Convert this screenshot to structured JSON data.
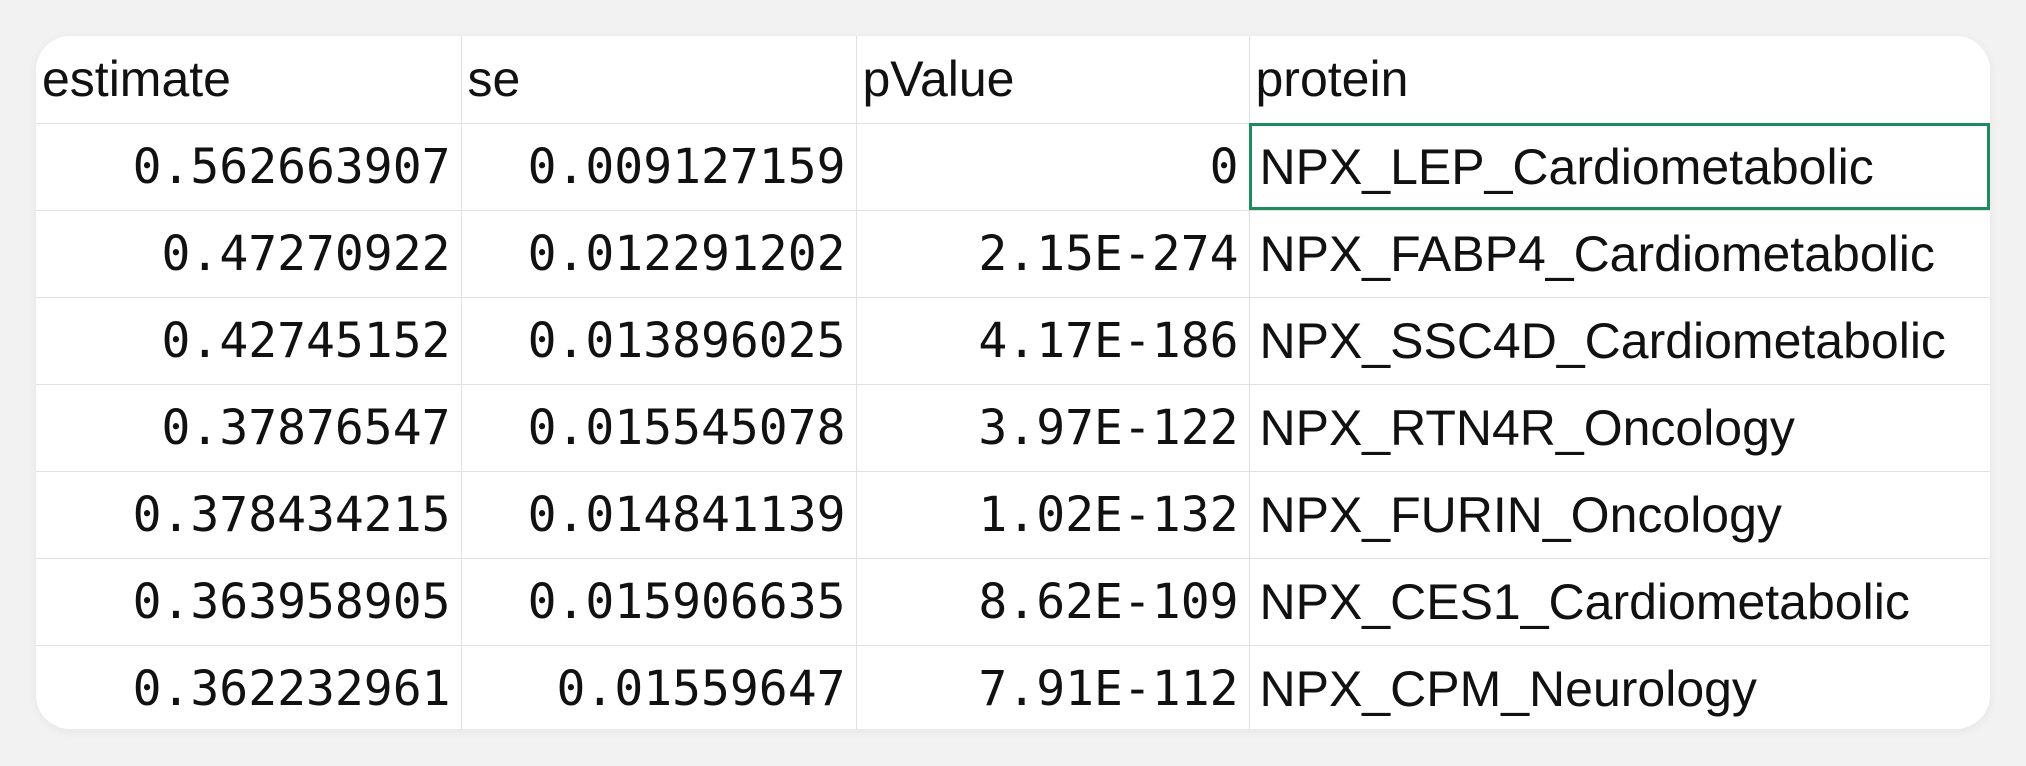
{
  "sheet": {
    "accent_selection_color": "#1e8b5e",
    "headers": [
      "estimate",
      "se",
      "pValue",
      "protein"
    ],
    "rows": [
      {
        "estimate": "0.562663907",
        "se": "0.009127159",
        "pValue": "0",
        "protein": "NPX_LEP_Cardiometabolic"
      },
      {
        "estimate": "0.47270922",
        "se": "0.012291202",
        "pValue": "2.15E-274",
        "protein": "NPX_FABP4_Cardiometabolic"
      },
      {
        "estimate": "0.42745152",
        "se": "0.013896025",
        "pValue": "4.17E-186",
        "protein": "NPX_SSC4D_Cardiometabolic"
      },
      {
        "estimate": "0.37876547",
        "se": "0.015545078",
        "pValue": "3.97E-122",
        "protein": "NPX_RTN4R_Oncology"
      },
      {
        "estimate": "0.378434215",
        "se": "0.014841139",
        "pValue": "1.02E-132",
        "protein": "NPX_FURIN_Oncology"
      },
      {
        "estimate": "0.363958905",
        "se": "0.015906635",
        "pValue": "8.62E-109",
        "protein": "NPX_CES1_Cardiometabolic"
      },
      {
        "estimate": "0.362232961",
        "se": "0.01559647",
        "pValue": "7.91E-112",
        "protein": "NPX_CPM_Neurology"
      }
    ]
  }
}
